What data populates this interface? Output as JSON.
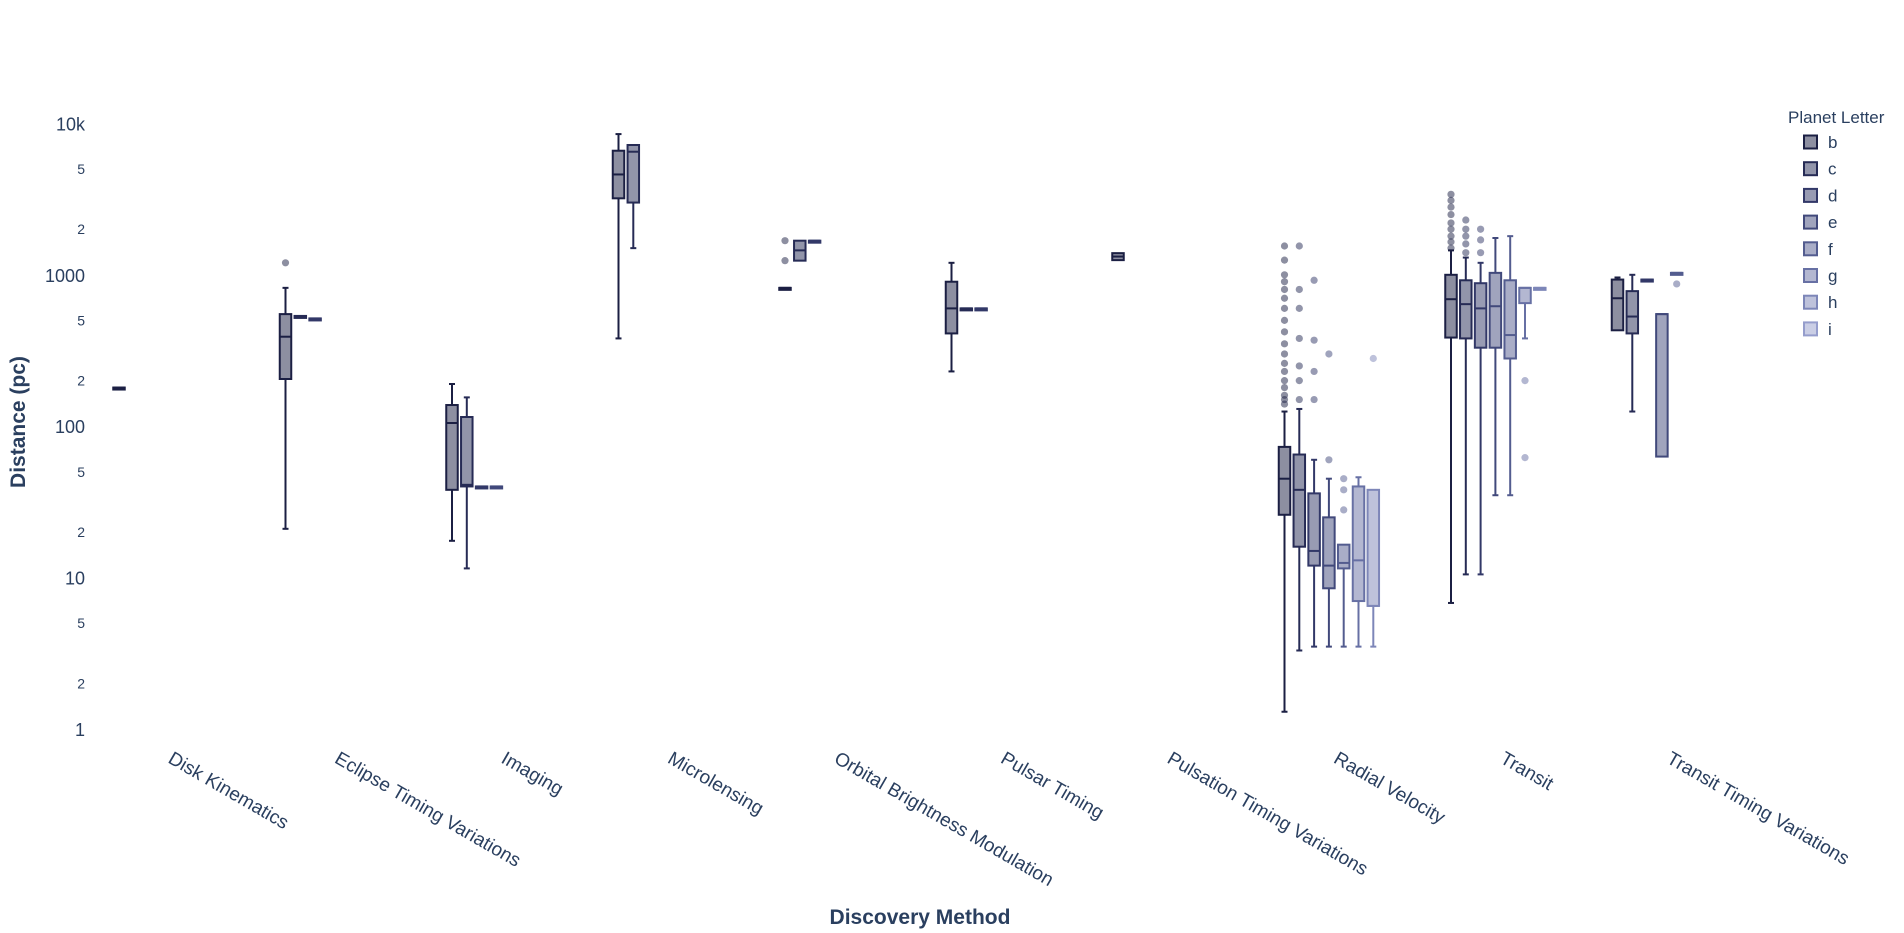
{
  "chart_data": {
    "type": "box",
    "title": "",
    "xlabel": "Discovery Method",
    "ylabel": "Distance (pc)",
    "yscale": "log",
    "ylim": [
      0.8,
      15000
    ],
    "y_major_ticks": [
      {
        "value": 1,
        "label": "1"
      },
      {
        "value": 10,
        "label": "10"
      },
      {
        "value": 100,
        "label": "100"
      },
      {
        "value": 1000,
        "label": "1000"
      },
      {
        "value": 10000,
        "label": "10k"
      }
    ],
    "y_minor_ticks": [
      {
        "value": 2,
        "label": "2"
      },
      {
        "value": 5,
        "label": "5"
      },
      {
        "value": 20,
        "label": "2"
      },
      {
        "value": 50,
        "label": "5"
      },
      {
        "value": 200,
        "label": "2"
      },
      {
        "value": 500,
        "label": "5"
      },
      {
        "value": 2000,
        "label": "2"
      },
      {
        "value": 5000,
        "label": "5"
      }
    ],
    "categories": [
      "Disk Kinematics",
      "Eclipse Timing Variations",
      "Imaging",
      "Microlensing",
      "Orbital Brightness Modulation",
      "Pulsar Timing",
      "Pulsation Timing Variations",
      "Radial Velocity",
      "Transit",
      "Transit Timing Variations"
    ],
    "legend": {
      "title": "Planet Letter",
      "position": "top-right",
      "items": [
        {
          "name": "b",
          "color": "#1b1f43"
        },
        {
          "name": "c",
          "color": "#262b55"
        },
        {
          "name": "d",
          "color": "#323868"
        },
        {
          "name": "e",
          "color": "#41497b"
        },
        {
          "name": "f",
          "color": "#535c8f"
        },
        {
          "name": "g",
          "color": "#6770a4"
        },
        {
          "name": "h",
          "color": "#7d86b8"
        },
        {
          "name": "i",
          "color": "#959dcc"
        }
      ]
    },
    "boxes": [
      {
        "category": "Disk Kinematics",
        "series": "b",
        "min": 180,
        "q1": 180,
        "median": 180,
        "q3": 180,
        "max": 180,
        "outliers": []
      },
      {
        "category": "Eclipse Timing Variations",
        "series": "b",
        "min": 21,
        "q1": 205,
        "median": 390,
        "q3": 550,
        "max": 820,
        "outliers": [
          1200
        ]
      },
      {
        "category": "Eclipse Timing Variations",
        "series": "c",
        "min": 520,
        "q1": 520,
        "median": 525,
        "q3": 535,
        "max": 535,
        "outliers": []
      },
      {
        "category": "Eclipse Timing Variations",
        "series": "d",
        "min": 515,
        "q1": 515,
        "median": 515,
        "q3": 515,
        "max": 515,
        "outliers": []
      },
      {
        "category": "Imaging",
        "series": "b",
        "min": 17.5,
        "q1": 38,
        "median": 105,
        "q3": 138,
        "max": 190,
        "outliers": []
      },
      {
        "category": "Imaging",
        "series": "c",
        "min": 11.5,
        "q1": 40,
        "median": 41,
        "q3": 115,
        "max": 155,
        "outliers": []
      },
      {
        "category": "Imaging",
        "series": "d",
        "min": 40,
        "q1": 40,
        "median": 40,
        "q3": 40,
        "max": 40,
        "outliers": []
      },
      {
        "category": "Imaging",
        "series": "e",
        "min": 40,
        "q1": 40,
        "median": 40,
        "q3": 40,
        "max": 40,
        "outliers": []
      },
      {
        "category": "Microlensing",
        "series": "b",
        "min": 380,
        "q1": 3200,
        "median": 4600,
        "q3": 6600,
        "max": 8500,
        "outliers": []
      },
      {
        "category": "Microlensing",
        "series": "c",
        "min": 1500,
        "q1": 3000,
        "median": 6500,
        "q3": 7200,
        "max": 7200,
        "outliers": []
      },
      {
        "category": "Orbital Brightness Modulation",
        "series": "b",
        "min": 820,
        "q1": 820,
        "median": 820,
        "q3": 820,
        "max": 820,
        "outliers": [
          1240,
          1680
        ]
      },
      {
        "category": "Orbital Brightness Modulation",
        "series": "c",
        "min": 1240,
        "q1": 1240,
        "median": 1450,
        "q3": 1680,
        "max": 1680,
        "outliers": []
      },
      {
        "category": "Orbital Brightness Modulation",
        "series": "d",
        "min": 1680,
        "q1": 1680,
        "median": 1680,
        "q3": 1680,
        "max": 1680,
        "outliers": []
      },
      {
        "category": "Pulsar Timing",
        "series": "b",
        "min": 230,
        "q1": 410,
        "median": 600,
        "q3": 900,
        "max": 1200,
        "outliers": []
      },
      {
        "category": "Pulsar Timing",
        "series": "c",
        "min": 600,
        "q1": 600,
        "median": 600,
        "q3": 600,
        "max": 600,
        "outliers": []
      },
      {
        "category": "Pulsar Timing",
        "series": "d",
        "min": 600,
        "q1": 600,
        "median": 600,
        "q3": 600,
        "max": 600,
        "outliers": []
      },
      {
        "category": "Pulsation Timing Variations",
        "series": "b",
        "min": 1250,
        "q1": 1250,
        "median": 1320,
        "q3": 1390,
        "max": 1390,
        "outliers": []
      },
      {
        "category": "Radial Velocity",
        "series": "b",
        "min": 1.3,
        "q1": 26,
        "median": 45,
        "q3": 73,
        "max": 125,
        "outliers": [
          140,
          150,
          160,
          180,
          200,
          230,
          260,
          300,
          350,
          420,
          500,
          600,
          700,
          800,
          900,
          1000,
          1250,
          1550
        ]
      },
      {
        "category": "Radial Velocity",
        "series": "c",
        "min": 3.3,
        "q1": 16,
        "median": 38,
        "q3": 65,
        "max": 130,
        "outliers": [
          150,
          200,
          250,
          380,
          600,
          800,
          1550
        ]
      },
      {
        "category": "Radial Velocity",
        "series": "d",
        "min": 3.5,
        "q1": 12,
        "median": 15,
        "q3": 36,
        "max": 60,
        "outliers": [
          150,
          230,
          370,
          920
        ]
      },
      {
        "category": "Radial Velocity",
        "series": "e",
        "min": 3.5,
        "q1": 8.5,
        "median": 12,
        "q3": 25,
        "max": 45,
        "outliers": [
          60,
          300
        ]
      },
      {
        "category": "Radial Velocity",
        "series": "f",
        "min": 3.5,
        "q1": 11.5,
        "median": 12.5,
        "q3": 16.5,
        "max": 16.5,
        "outliers": [
          28,
          38,
          45
        ]
      },
      {
        "category": "Radial Velocity",
        "series": "g",
        "min": 3.5,
        "q1": 7,
        "median": 13,
        "q3": 40,
        "max": 46,
        "outliers": []
      },
      {
        "category": "Radial Velocity",
        "series": "h",
        "min": 3.5,
        "q1": 6.5,
        "median": 6.5,
        "q3": 38,
        "max": 38,
        "outliers": [
          280
        ]
      },
      {
        "category": "Transit",
        "series": "b",
        "min": 6.8,
        "q1": 385,
        "median": 690,
        "q3": 1000,
        "max": 1450,
        "outliers": [
          1500,
          1650,
          1800,
          2000,
          2200,
          2500,
          2800,
          3100,
          3400
        ]
      },
      {
        "category": "Transit",
        "series": "c",
        "min": 10.5,
        "q1": 380,
        "median": 640,
        "q3": 920,
        "max": 1300,
        "outliers": [
          1400,
          1600,
          1800,
          2000,
          2300
        ]
      },
      {
        "category": "Transit",
        "series": "d",
        "min": 10.5,
        "q1": 330,
        "median": 600,
        "q3": 880,
        "max": 1200,
        "outliers": [
          1400,
          1700,
          2000
        ]
      },
      {
        "category": "Transit",
        "series": "e",
        "min": 35,
        "q1": 330,
        "median": 620,
        "q3": 1030,
        "max": 1750,
        "outliers": []
      },
      {
        "category": "Transit",
        "series": "f",
        "min": 35,
        "q1": 280,
        "median": 400,
        "q3": 920,
        "max": 1800,
        "outliers": []
      },
      {
        "category": "Transit",
        "series": "g",
        "min": 380,
        "q1": 650,
        "median": 820,
        "q3": 820,
        "max": 820,
        "outliers": [
          200,
          62
        ]
      },
      {
        "category": "Transit",
        "series": "h",
        "min": 820,
        "q1": 820,
        "median": 820,
        "q3": 820,
        "max": 820,
        "outliers": []
      },
      {
        "category": "Transit Timing Variations",
        "series": "b",
        "min": 430,
        "q1": 430,
        "median": 700,
        "q3": 930,
        "max": 960,
        "outliers": []
      },
      {
        "category": "Transit Timing Variations",
        "series": "c",
        "min": 125,
        "q1": 410,
        "median": 530,
        "q3": 780,
        "max": 1000,
        "outliers": []
      },
      {
        "category": "Transit Timing Variations",
        "series": "d",
        "min": 930,
        "q1": 930,
        "median": 930,
        "q3": 930,
        "max": 930,
        "outliers": []
      },
      {
        "category": "Transit Timing Variations",
        "series": "e",
        "min": 63,
        "q1": 63,
        "median": 550,
        "q3": 550,
        "max": 550,
        "outliers": []
      },
      {
        "category": "Transit Timing Variations",
        "series": "f",
        "min": 1030,
        "q1": 1030,
        "median": 1030,
        "q3": 1030,
        "max": 1030,
        "outliers": [
          870
        ]
      }
    ]
  }
}
